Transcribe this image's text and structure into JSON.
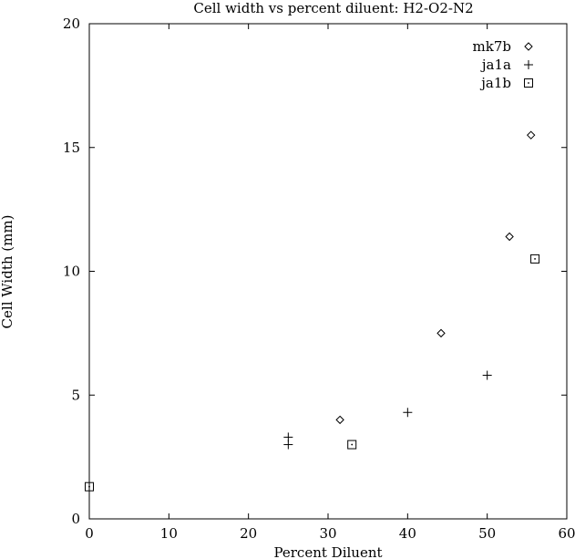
{
  "chart_data": {
    "type": "scatter",
    "title": "Cell width vs percent diluent: H2-O2-N2",
    "xlabel": "Percent Diluent",
    "ylabel": "Cell Width (mm)",
    "xlim": [
      0,
      60
    ],
    "ylim": [
      0,
      20
    ],
    "xticks": [
      0,
      10,
      20,
      30,
      40,
      50,
      60
    ],
    "yticks": [
      0,
      5,
      10,
      15,
      20
    ],
    "grid": false,
    "legend_position": "top-right",
    "series": [
      {
        "name": "mk7b",
        "marker": "diamond",
        "points": [
          [
            31.5,
            4.0
          ],
          [
            44.2,
            7.5
          ],
          [
            52.8,
            11.4
          ],
          [
            55.5,
            15.5
          ]
        ]
      },
      {
        "name": "ja1a",
        "marker": "plus",
        "points": [
          [
            25.0,
            3.0
          ],
          [
            25.0,
            3.3
          ],
          [
            40.0,
            4.3
          ],
          [
            50.0,
            5.8
          ]
        ]
      },
      {
        "name": "ja1b",
        "marker": "dotted-square",
        "points": [
          [
            0.0,
            1.3
          ],
          [
            33.0,
            3.0
          ],
          [
            56.0,
            10.5
          ]
        ]
      }
    ],
    "color": "#000000"
  }
}
